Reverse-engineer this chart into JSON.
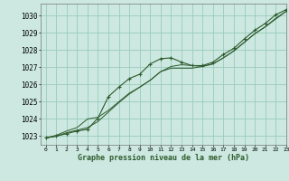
{
  "xlabel": "Graphe pression niveau de la mer (hPa)",
  "ylim": [
    1022.5,
    1030.7
  ],
  "xlim": [
    -0.5,
    23
  ],
  "yticks": [
    1023,
    1024,
    1025,
    1026,
    1027,
    1028,
    1029,
    1030
  ],
  "xticks": [
    0,
    1,
    2,
    3,
    4,
    5,
    6,
    7,
    8,
    9,
    10,
    11,
    12,
    13,
    14,
    15,
    16,
    17,
    18,
    19,
    20,
    21,
    22,
    23
  ],
  "xtick_labels": [
    "0",
    "1",
    "2",
    "3",
    "4",
    "5",
    "6",
    "7",
    "8",
    "9",
    "10",
    "11",
    "12",
    "13",
    "14",
    "15",
    "16",
    "17",
    "18",
    "19",
    "20",
    "21",
    "22",
    "23"
  ],
  "background_color": "#cce8e0",
  "grid_color": "#99ccbb",
  "line_color": "#2d5a2d",
  "series1_x": [
    0,
    1,
    2,
    3,
    4,
    5,
    6,
    7,
    8,
    9,
    10,
    11,
    12,
    13,
    14,
    15,
    16,
    17,
    18,
    19,
    20,
    21,
    22,
    23
  ],
  "series1_y": [
    1022.9,
    1023.0,
    1023.15,
    1023.3,
    1023.4,
    1024.05,
    1025.3,
    1025.85,
    1026.35,
    1026.6,
    1027.2,
    1027.5,
    1027.55,
    1027.3,
    1027.1,
    1027.1,
    1027.3,
    1027.75,
    1028.1,
    1028.65,
    1029.15,
    1029.55,
    1030.05,
    1030.35
  ],
  "series2_x": [
    0,
    1,
    2,
    3,
    4,
    5,
    6,
    7,
    8,
    9,
    10,
    11,
    12,
    13,
    14,
    15,
    16,
    17,
    18,
    19,
    20,
    21,
    22,
    23
  ],
  "series2_y": [
    1022.9,
    1023.0,
    1023.2,
    1023.35,
    1023.5,
    1023.85,
    1024.4,
    1024.95,
    1025.45,
    1025.85,
    1026.25,
    1026.75,
    1027.05,
    1027.15,
    1027.1,
    1027.05,
    1027.2,
    1027.55,
    1027.95,
    1028.45,
    1028.95,
    1029.35,
    1029.85,
    1030.25
  ],
  "series3_x": [
    0,
    1,
    2,
    3,
    4,
    5,
    6,
    7,
    8,
    9,
    10,
    11,
    12,
    13,
    14,
    15,
    16,
    17,
    18,
    19,
    20,
    21,
    22,
    23
  ],
  "series3_y": [
    1022.9,
    1023.05,
    1023.3,
    1023.5,
    1024.0,
    1024.1,
    1024.5,
    1025.0,
    1025.5,
    1025.85,
    1026.25,
    1026.75,
    1026.95,
    1026.95,
    1026.95,
    1027.05,
    1027.2,
    1027.55,
    1027.95,
    1028.45,
    1028.95,
    1029.35,
    1029.8,
    1030.25
  ]
}
